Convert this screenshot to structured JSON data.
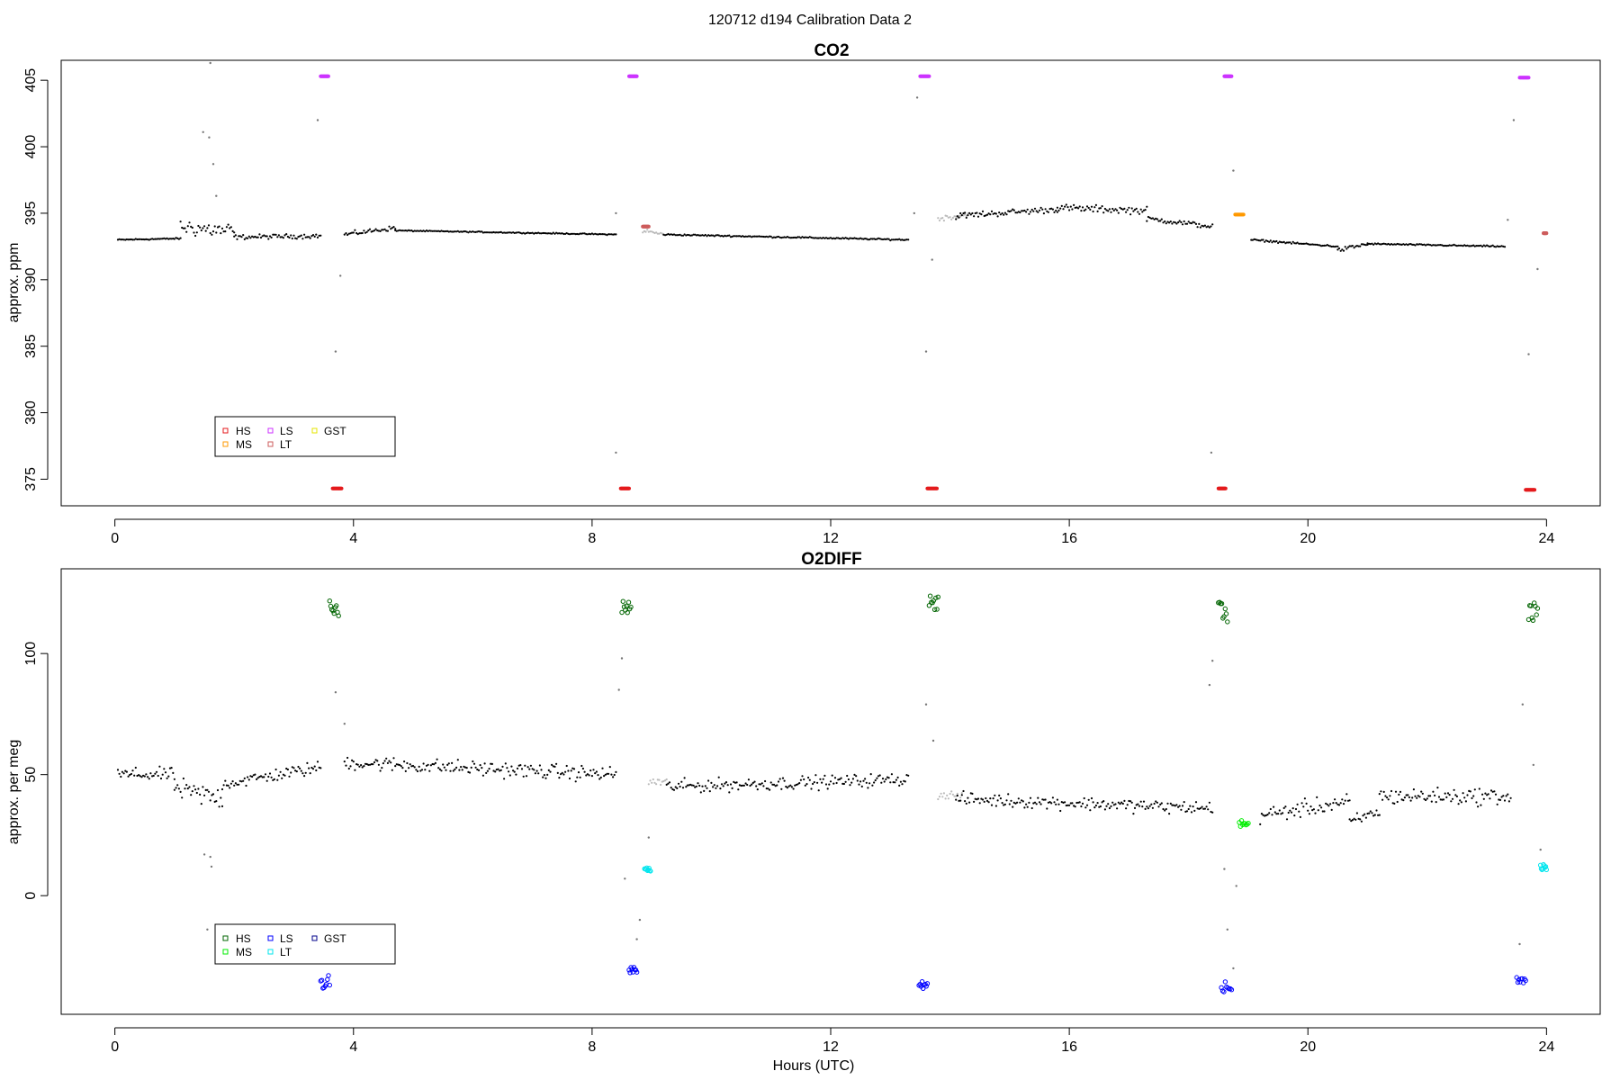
{
  "suptitle": "120712   d194   Calibration Data 2",
  "chart_data": [
    {
      "type": "scatter",
      "title": "CO2",
      "xlabel": "",
      "ylabel": "approx. ppm",
      "xlim": [
        -0.9,
        24.9
      ],
      "ylim": [
        373.0,
        406.5
      ],
      "xticks": [
        0,
        4,
        8,
        12,
        16,
        20,
        24
      ],
      "xtick_labels": [
        "0",
        "4",
        "8",
        "12",
        "16",
        "20",
        "24"
      ],
      "yticks": [
        375,
        380,
        385,
        390,
        395,
        400,
        405
      ],
      "ytick_labels": [
        "375",
        "380",
        "385",
        "390",
        "395",
        "400",
        "405"
      ],
      "legend_position": "bottom-left",
      "legend": [
        {
          "label": "HS",
          "color": "#e41a1c"
        },
        {
          "label": "MS",
          "color": "#ff9900"
        },
        {
          "label": "LS",
          "color": "#cc33ff"
        },
        {
          "label": "LT",
          "color": "#cd5c5c"
        },
        {
          "label": "GST",
          "color": "#e6e600"
        }
      ],
      "baseline_segments": [
        {
          "x": [
            0.05,
            1.1
          ],
          "y": [
            393.0,
            393.1
          ],
          "noise": 0.08,
          "color": "#000000"
        },
        {
          "x": [
            1.1,
            2.0
          ],
          "y": [
            394.0,
            393.6
          ],
          "noise": 1.0,
          "color": "#000000"
        },
        {
          "x": [
            2.0,
            3.45
          ],
          "y": [
            393.2,
            393.3
          ],
          "noise": 0.25,
          "color": "#000000"
        },
        {
          "x": [
            3.85,
            4.7
          ],
          "y": [
            393.4,
            393.9
          ],
          "noise": 0.25,
          "color": "#000000"
        },
        {
          "x": [
            4.7,
            8.4
          ],
          "y": [
            393.7,
            393.4
          ],
          "noise": 0.06,
          "color": "#000000"
        },
        {
          "x": [
            8.85,
            9.2
          ],
          "y": [
            393.7,
            393.4
          ],
          "noise": 0.25,
          "color": "#bbbbbb"
        },
        {
          "x": [
            9.2,
            13.3
          ],
          "y": [
            393.4,
            393.0
          ],
          "noise": 0.08,
          "color": "#000000"
        },
        {
          "x": [
            13.8,
            14.3
          ],
          "y": [
            394.6,
            394.9
          ],
          "noise": 0.3,
          "color": "#bbbbbb"
        },
        {
          "x": [
            14.1,
            15.8
          ],
          "y": [
            394.8,
            395.3
          ],
          "noise": 0.35,
          "color": "#000000"
        },
        {
          "x": [
            15.8,
            17.3
          ],
          "y": [
            395.4,
            395.2
          ],
          "noise": 0.4,
          "color": "#000000"
        },
        {
          "x": [
            17.3,
            18.4
          ],
          "y": [
            394.6,
            394.0
          ],
          "noise": 0.3,
          "color": "#000000"
        },
        {
          "x": [
            19.05,
            20.5
          ],
          "y": [
            393.0,
            392.5
          ],
          "noise": 0.1,
          "color": "#000000"
        },
        {
          "x": [
            20.5,
            21.0
          ],
          "y": [
            392.2,
            392.7
          ],
          "noise": 0.25,
          "color": "#000000"
        },
        {
          "x": [
            21.0,
            23.3
          ],
          "y": [
            392.7,
            392.5
          ],
          "noise": 0.08,
          "color": "#000000"
        }
      ],
      "cal_points": [
        {
          "name": "LS",
          "x": [
            3.45,
            3.58
          ],
          "y": 405.3,
          "color": "#cc33ff"
        },
        {
          "name": "LS",
          "x": [
            8.62,
            8.75
          ],
          "y": 405.3,
          "color": "#cc33ff"
        },
        {
          "name": "LS",
          "x": [
            13.5,
            13.65
          ],
          "y": 405.3,
          "color": "#cc33ff"
        },
        {
          "name": "LS",
          "x": [
            18.6,
            18.72
          ],
          "y": 405.3,
          "color": "#cc33ff"
        },
        {
          "name": "LS",
          "x": [
            23.55,
            23.7
          ],
          "y": 405.2,
          "color": "#cc33ff"
        },
        {
          "name": "HS",
          "x": [
            3.65,
            3.8
          ],
          "y": 374.3,
          "color": "#e41a1c"
        },
        {
          "name": "HS",
          "x": [
            8.48,
            8.62
          ],
          "y": 374.3,
          "color": "#e41a1c"
        },
        {
          "name": "HS",
          "x": [
            13.62,
            13.78
          ],
          "y": 374.3,
          "color": "#e41a1c"
        },
        {
          "name": "HS",
          "x": [
            18.5,
            18.62
          ],
          "y": 374.3,
          "color": "#e41a1c"
        },
        {
          "name": "HS",
          "x": [
            23.65,
            23.8
          ],
          "y": 374.2,
          "color": "#e41a1c"
        },
        {
          "name": "MS",
          "x": [
            18.78,
            18.92
          ],
          "y": 394.9,
          "color": "#ff9900"
        },
        {
          "name": "LT",
          "x": [
            8.85,
            8.95
          ],
          "y": 394.0,
          "color": "#cd5c5c"
        },
        {
          "name": "LT",
          "x": [
            23.95,
            24.0
          ],
          "y": 393.5,
          "color": "#cd5c5c"
        }
      ],
      "outliers": [
        {
          "x": 1.6,
          "y": 406.3
        },
        {
          "x": 1.48,
          "y": 401.1
        },
        {
          "x": 1.58,
          "y": 400.7
        },
        {
          "x": 1.65,
          "y": 398.7
        },
        {
          "x": 1.7,
          "y": 396.3
        },
        {
          "x": 3.4,
          "y": 402.0
        },
        {
          "x": 3.7,
          "y": 384.6
        },
        {
          "x": 3.78,
          "y": 390.3
        },
        {
          "x": 8.4,
          "y": 377.0
        },
        {
          "x": 13.45,
          "y": 403.7
        },
        {
          "x": 13.6,
          "y": 384.6
        },
        {
          "x": 13.7,
          "y": 391.5
        },
        {
          "x": 18.38,
          "y": 377.0
        },
        {
          "x": 18.75,
          "y": 398.2
        },
        {
          "x": 23.45,
          "y": 402.0
        },
        {
          "x": 23.7,
          "y": 384.4
        },
        {
          "x": 23.85,
          "y": 390.8
        },
        {
          "x": 8.4,
          "y": 395.0
        },
        {
          "x": 13.4,
          "y": 395.0
        },
        {
          "x": 23.35,
          "y": 394.5
        }
      ]
    },
    {
      "type": "scatter",
      "title": "O2DIFF",
      "xlabel": "Hours (UTC)",
      "ylabel": "approx. per meg",
      "xlim": [
        -0.9,
        24.9
      ],
      "ylim": [
        -49.0,
        135.0
      ],
      "xticks": [
        0,
        4,
        8,
        12,
        16,
        20,
        24
      ],
      "xtick_labels": [
        "0",
        "4",
        "8",
        "12",
        "16",
        "20",
        "24"
      ],
      "yticks": [
        0,
        50,
        100
      ],
      "ytick_labels": [
        "0",
        "50",
        "100"
      ],
      "legend_position": "bottom-left",
      "legend": [
        {
          "label": "HS",
          "color": "#006400"
        },
        {
          "label": "MS",
          "color": "#00ee00"
        },
        {
          "label": "LS",
          "color": "#0000ff"
        },
        {
          "label": "LT",
          "color": "#00e5ee"
        },
        {
          "label": "GST",
          "color": "#00008b"
        }
      ],
      "baseline_segments": [
        {
          "x": [
            0.05,
            1.0
          ],
          "y": [
            50.0,
            50.0
          ],
          "noise": 4.0,
          "color": "#000000"
        },
        {
          "x": [
            1.0,
            1.8
          ],
          "y": [
            44.0,
            40.0
          ],
          "noise": 7.0,
          "color": "#000000"
        },
        {
          "x": [
            1.8,
            3.45
          ],
          "y": [
            46.0,
            53.0
          ],
          "noise": 4.0,
          "color": "#000000"
        },
        {
          "x": [
            3.85,
            8.4
          ],
          "y": [
            55.0,
            50.0
          ],
          "noise": 4.5,
          "color": "#000000"
        },
        {
          "x": [
            8.95,
            9.25
          ],
          "y": [
            47.0,
            47.0
          ],
          "noise": 3.0,
          "color": "#bbbbbb"
        },
        {
          "x": [
            9.25,
            13.3
          ],
          "y": [
            45.0,
            48.0
          ],
          "noise": 4.0,
          "color": "#000000"
        },
        {
          "x": [
            13.8,
            14.2
          ],
          "y": [
            42.0,
            41.0
          ],
          "noise": 3.0,
          "color": "#bbbbbb"
        },
        {
          "x": [
            14.1,
            18.4
          ],
          "y": [
            40.0,
            36.0
          ],
          "noise": 4.0,
          "color": "#000000"
        },
        {
          "x": [
            19.2,
            20.7
          ],
          "y": [
            33.0,
            39.0
          ],
          "noise": 5.0,
          "color": "#000000"
        },
        {
          "x": [
            20.7,
            21.2
          ],
          "y": [
            30.0,
            35.0
          ],
          "noise": 4.0,
          "color": "#000000"
        },
        {
          "x": [
            21.2,
            23.4
          ],
          "y": [
            41.0,
            41.0
          ],
          "noise": 5.0,
          "color": "#000000"
        }
      ],
      "cal_points": [
        {
          "name": "HS",
          "x": [
            3.6,
            3.75
          ],
          "y": 118.0,
          "spread": 7,
          "color": "#006400"
        },
        {
          "name": "HS",
          "x": [
            8.5,
            8.65
          ],
          "y": 119.0,
          "spread": 5,
          "color": "#006400"
        },
        {
          "name": "HS",
          "x": [
            13.65,
            13.8
          ],
          "y": 120.0,
          "spread": 6,
          "color": "#006400"
        },
        {
          "name": "HS",
          "x": [
            18.5,
            18.65
          ],
          "y": 119.0,
          "spread": 9,
          "color": "#006400"
        },
        {
          "name": "HS",
          "x": [
            23.7,
            23.85
          ],
          "y": 118.0,
          "spread": 8,
          "color": "#006400"
        },
        {
          "name": "LS",
          "x": [
            3.45,
            3.6
          ],
          "y": -36.0,
          "spread": 4,
          "color": "#0000ff"
        },
        {
          "name": "LS",
          "x": [
            8.62,
            8.75
          ],
          "y": -31.0,
          "spread": 4,
          "color": "#0000ff"
        },
        {
          "name": "LS",
          "x": [
            13.48,
            13.62
          ],
          "y": -37.0,
          "spread": 2,
          "color": "#0000ff"
        },
        {
          "name": "LS",
          "x": [
            18.55,
            18.72
          ],
          "y": -38.0,
          "spread": 4,
          "color": "#0000ff"
        },
        {
          "name": "LS",
          "x": [
            23.5,
            23.65
          ],
          "y": -35.0,
          "spread": 2,
          "color": "#0000ff"
        },
        {
          "name": "MS",
          "x": [
            18.85,
            19.0
          ],
          "y": 30.0,
          "spread": 2,
          "color": "#00ee00"
        },
        {
          "name": "LT",
          "x": [
            8.88,
            8.98
          ],
          "y": 11.0,
          "spread": 2,
          "color": "#00e5ee"
        },
        {
          "name": "LT",
          "x": [
            23.9,
            24.0
          ],
          "y": 12.0,
          "spread": 2,
          "color": "#00e5ee"
        }
      ],
      "outliers": [
        {
          "x": 1.5,
          "y": 17.0
        },
        {
          "x": 1.6,
          "y": 16.0
        },
        {
          "x": 1.62,
          "y": 12.0
        },
        {
          "x": 1.55,
          "y": -14.0
        },
        {
          "x": 3.7,
          "y": 84.0
        },
        {
          "x": 3.85,
          "y": 71.0
        },
        {
          "x": 8.45,
          "y": 85.0
        },
        {
          "x": 8.5,
          "y": 98.0
        },
        {
          "x": 8.55,
          "y": 7.0
        },
        {
          "x": 8.75,
          "y": -18.0
        },
        {
          "x": 8.8,
          "y": -10.0
        },
        {
          "x": 8.95,
          "y": 24.0
        },
        {
          "x": 13.6,
          "y": 79.0
        },
        {
          "x": 13.72,
          "y": 64.0
        },
        {
          "x": 18.35,
          "y": 87.0
        },
        {
          "x": 18.4,
          "y": 97.0
        },
        {
          "x": 18.6,
          "y": 11.0
        },
        {
          "x": 18.65,
          "y": -14.0
        },
        {
          "x": 18.75,
          "y": -30.0
        },
        {
          "x": 18.8,
          "y": 4.0
        },
        {
          "x": 23.6,
          "y": 79.0
        },
        {
          "x": 23.55,
          "y": -20.0
        },
        {
          "x": 23.78,
          "y": 54.0
        },
        {
          "x": 23.9,
          "y": 19.0
        }
      ]
    }
  ]
}
